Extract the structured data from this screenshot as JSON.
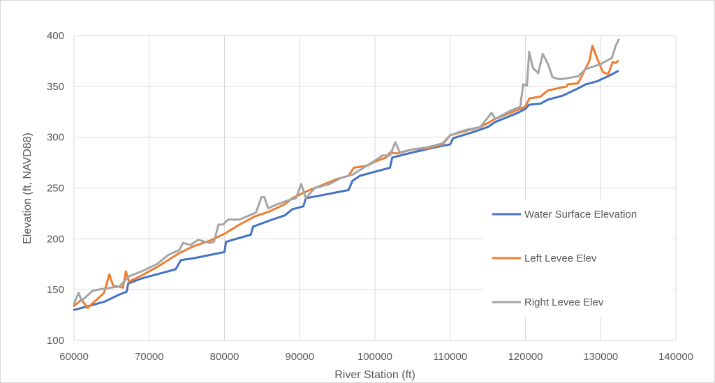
{
  "chart_data": {
    "type": "line",
    "title": "",
    "xlabel": "River Station (ft)",
    "ylabel": "Elevation (ft, NAVD88)",
    "xlim": [
      60000,
      140000
    ],
    "ylim": [
      100,
      400
    ],
    "x_ticks": [
      "60000",
      "70000",
      "80000",
      "90000",
      "100000",
      "110000",
      "120000",
      "130000",
      "140000"
    ],
    "y_ticks": [
      "100",
      "150",
      "200",
      "250",
      "300",
      "350",
      "400"
    ],
    "grid": true,
    "legend_position": "right-inside",
    "series": [
      {
        "name": "Water Surface Elevation",
        "color": "#4472C4",
        "points": [
          [
            60000,
            130
          ],
          [
            62000,
            134
          ],
          [
            64000,
            138
          ],
          [
            66000,
            145
          ],
          [
            67000,
            148
          ],
          [
            67200,
            156
          ],
          [
            69000,
            161
          ],
          [
            71000,
            165
          ],
          [
            73500,
            170
          ],
          [
            74200,
            179
          ],
          [
            76000,
            181
          ],
          [
            78000,
            184
          ],
          [
            80000,
            187
          ],
          [
            80200,
            197
          ],
          [
            82000,
            201
          ],
          [
            83500,
            204
          ],
          [
            83800,
            212
          ],
          [
            86000,
            218
          ],
          [
            88000,
            223
          ],
          [
            89000,
            229
          ],
          [
            90500,
            232
          ],
          [
            90800,
            240
          ],
          [
            93000,
            243
          ],
          [
            96500,
            248
          ],
          [
            97000,
            257
          ],
          [
            98000,
            262
          ],
          [
            100000,
            266
          ],
          [
            102000,
            270
          ],
          [
            102300,
            280
          ],
          [
            105000,
            285
          ],
          [
            108000,
            290
          ],
          [
            110000,
            293
          ],
          [
            110400,
            299
          ],
          [
            113000,
            305
          ],
          [
            115000,
            310
          ],
          [
            116000,
            315
          ],
          [
            119000,
            324
          ],
          [
            120000,
            328
          ],
          [
            120500,
            332
          ],
          [
            122000,
            333
          ],
          [
            123000,
            337
          ],
          [
            125000,
            341
          ],
          [
            127000,
            348
          ],
          [
            128000,
            352
          ],
          [
            129500,
            355
          ],
          [
            131000,
            360
          ],
          [
            132300,
            365
          ]
        ]
      },
      {
        "name": "Left Levee Elev",
        "color": "#ED7D31",
        "points": [
          [
            60000,
            134
          ],
          [
            61000,
            140
          ],
          [
            61800,
            132
          ],
          [
            63000,
            140
          ],
          [
            64000,
            147
          ],
          [
            64700,
            165
          ],
          [
            65200,
            154
          ],
          [
            66500,
            152
          ],
          [
            66900,
            168
          ],
          [
            67300,
            158
          ],
          [
            69000,
            164
          ],
          [
            71000,
            172
          ],
          [
            72500,
            179
          ],
          [
            74000,
            186
          ],
          [
            76000,
            193
          ],
          [
            78000,
            198
          ],
          [
            80000,
            205
          ],
          [
            82000,
            214
          ],
          [
            84000,
            222
          ],
          [
            86000,
            227
          ],
          [
            88000,
            234
          ],
          [
            89000,
            240
          ],
          [
            91000,
            247
          ],
          [
            93000,
            253
          ],
          [
            95000,
            259
          ],
          [
            96500,
            262
          ],
          [
            97200,
            270
          ],
          [
            99000,
            272
          ],
          [
            100000,
            276
          ],
          [
            101500,
            280
          ],
          [
            102000,
            285
          ],
          [
            103000,
            284
          ],
          [
            105000,
            288
          ],
          [
            107000,
            289
          ],
          [
            109000,
            293
          ],
          [
            110000,
            302
          ],
          [
            112000,
            306
          ],
          [
            114000,
            310
          ],
          [
            116000,
            318
          ],
          [
            118000,
            324
          ],
          [
            120000,
            330
          ],
          [
            120500,
            338
          ],
          [
            122000,
            340
          ],
          [
            123000,
            346
          ],
          [
            125500,
            350
          ],
          [
            125600,
            352
          ],
          [
            127000,
            353
          ],
          [
            128500,
            375
          ],
          [
            128900,
            390
          ],
          [
            129500,
            378
          ],
          [
            130300,
            364
          ],
          [
            131000,
            362
          ],
          [
            131600,
            374
          ],
          [
            132000,
            373
          ],
          [
            132300,
            375
          ]
        ]
      },
      {
        "name": "Right Levee Elev",
        "color": "#A5A5A5",
        "points": [
          [
            60000,
            136
          ],
          [
            60600,
            147
          ],
          [
            61000,
            139
          ],
          [
            62500,
            149
          ],
          [
            64000,
            151
          ],
          [
            66000,
            153
          ],
          [
            67300,
            163
          ],
          [
            69000,
            168
          ],
          [
            71000,
            175
          ],
          [
            72500,
            184
          ],
          [
            74000,
            189
          ],
          [
            74500,
            196
          ],
          [
            75500,
            194
          ],
          [
            76500,
            199
          ],
          [
            78000,
            196
          ],
          [
            78600,
            197
          ],
          [
            79200,
            214
          ],
          [
            79800,
            214
          ],
          [
            80500,
            219
          ],
          [
            82000,
            219
          ],
          [
            83000,
            222
          ],
          [
            84200,
            226
          ],
          [
            84900,
            241
          ],
          [
            85300,
            241
          ],
          [
            85800,
            230
          ],
          [
            87000,
            234
          ],
          [
            88500,
            238
          ],
          [
            89500,
            240
          ],
          [
            90200,
            254
          ],
          [
            90800,
            240
          ],
          [
            92000,
            250
          ],
          [
            94000,
            254
          ],
          [
            95500,
            260
          ],
          [
            97000,
            263
          ],
          [
            98500,
            270
          ],
          [
            100000,
            277
          ],
          [
            101000,
            282
          ],
          [
            102000,
            282
          ],
          [
            102700,
            295
          ],
          [
            103300,
            285
          ],
          [
            105000,
            288
          ],
          [
            107000,
            290
          ],
          [
            109000,
            294
          ],
          [
            110000,
            302
          ],
          [
            112000,
            307
          ],
          [
            114000,
            310
          ],
          [
            115500,
            324
          ],
          [
            116000,
            318
          ],
          [
            118000,
            326
          ],
          [
            119300,
            330
          ],
          [
            119700,
            352
          ],
          [
            120200,
            351
          ],
          [
            120500,
            384
          ],
          [
            121000,
            368
          ],
          [
            121700,
            363
          ],
          [
            122300,
            382
          ],
          [
            123000,
            372
          ],
          [
            123600,
            359
          ],
          [
            124500,
            357
          ],
          [
            125500,
            358
          ],
          [
            127000,
            360
          ],
          [
            128000,
            367
          ],
          [
            130000,
            372
          ],
          [
            131500,
            378
          ],
          [
            132000,
            390
          ],
          [
            132400,
            396
          ]
        ]
      }
    ]
  }
}
